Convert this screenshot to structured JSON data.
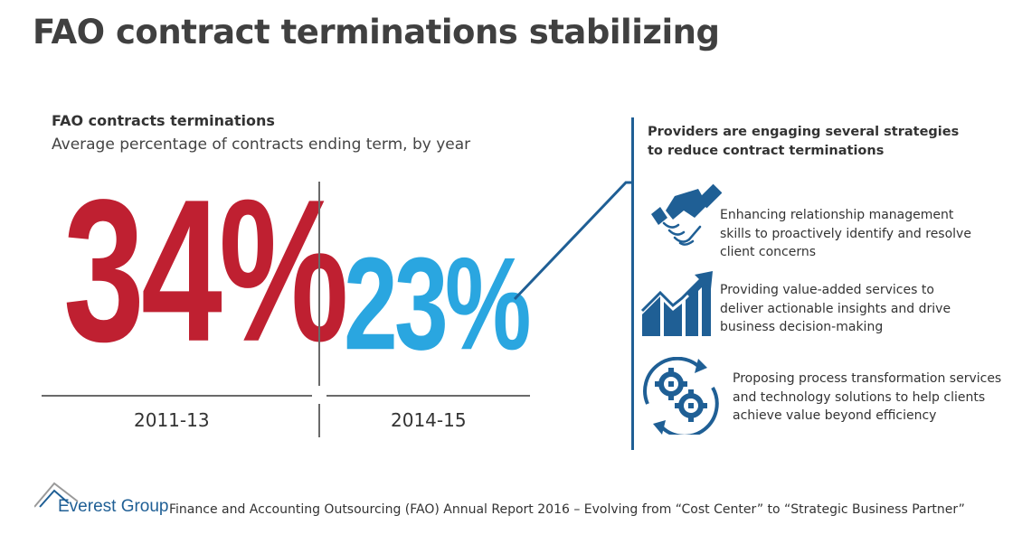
{
  "title": "FAO contract terminations stabilizing",
  "chart": {
    "heading": "FAO contracts terminations",
    "subheading": "Average percentage of contracts ending term, by year",
    "periods": [
      {
        "label": "2011-13",
        "value": "34%"
      },
      {
        "label": "2014-15",
        "value": "23%"
      }
    ]
  },
  "strategies": {
    "heading": "Providers are engaging several strategies to reduce contract terminations",
    "items": [
      {
        "icon": "handshake-icon",
        "text": "Enhancing relationship management skills to proactively identify and resolve client concerns"
      },
      {
        "icon": "growth-chart-icon",
        "text": "Providing value-added services to deliver actionable insights and drive business decision-making"
      },
      {
        "icon": "process-gears-icon",
        "text": "Proposing process transformation services and technology solutions to help clients achieve value beyond efficiency"
      }
    ]
  },
  "footer": {
    "logo_text": "Everest Group",
    "caption": "Finance and Accounting Outsourcing (FAO) Annual Report 2016 – Evolving from “Cost Center” to “Strategic Business Partner”"
  },
  "colors": {
    "red": "#bf2031",
    "blue": "#2aa6e0",
    "navy": "#1f5f95"
  }
}
